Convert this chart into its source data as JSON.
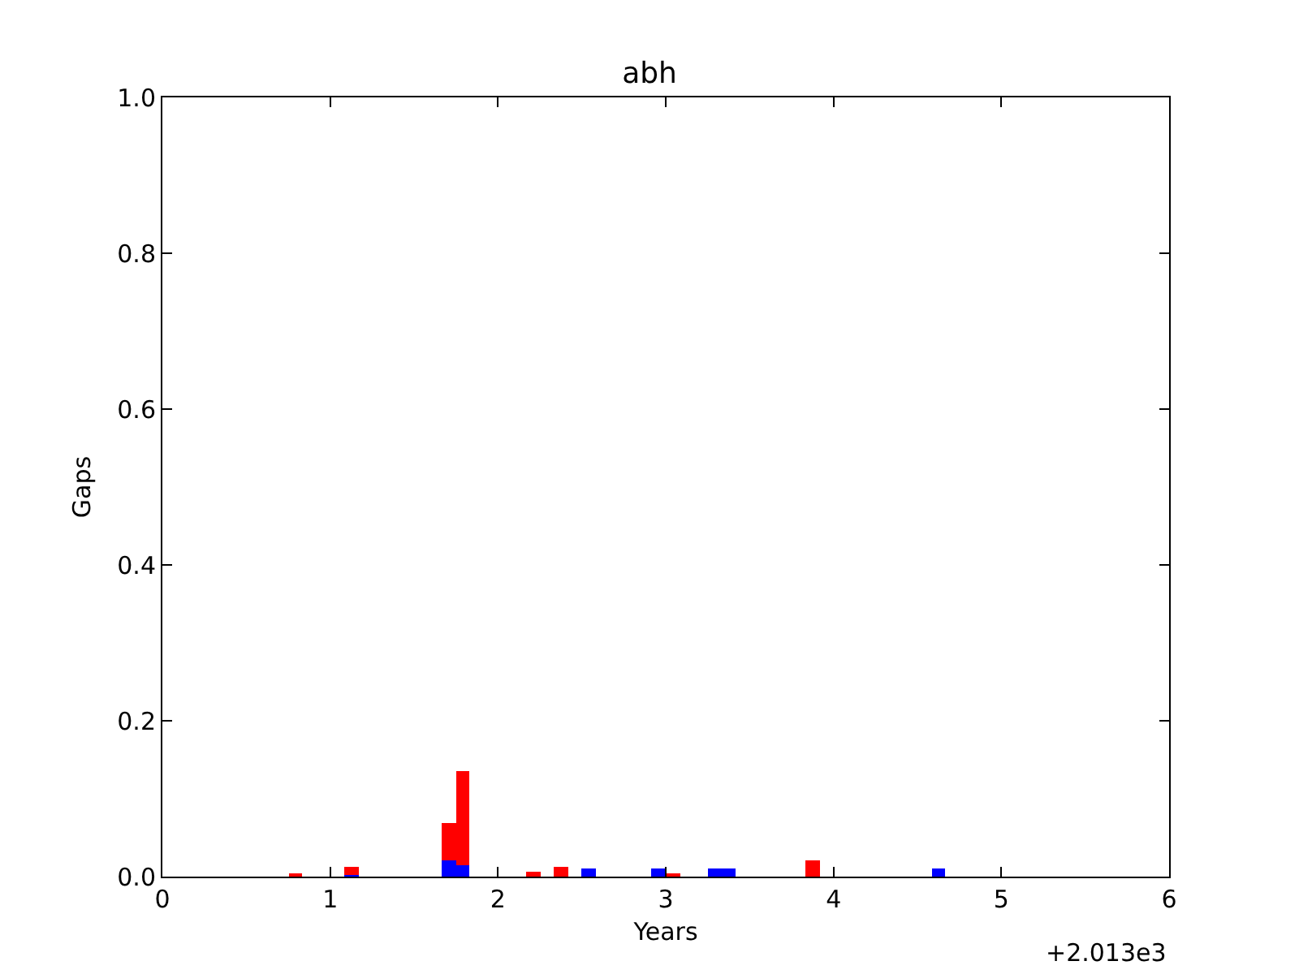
{
  "chart_data": {
    "type": "histogram",
    "title": "abh",
    "xlabel": "Years",
    "ylabel": "Gaps",
    "bins": [
      0.75,
      0.8333,
      0.9167,
      1,
      1.0833,
      1.1667,
      1.25,
      1.3333,
      1.4167,
      1.5,
      1.5833,
      1.6667,
      1.75,
      1.8333,
      1.9167,
      2,
      2.0833,
      2.1667,
      2.25,
      2.3333,
      2.4167,
      2.5,
      2.5833,
      2.6667,
      2.75,
      2.8333,
      2.9167,
      3,
      3.0833,
      3.1667,
      3.25,
      3.3333,
      3.4167,
      3.5,
      3.5833,
      3.6667,
      3.75,
      3.8333,
      3.9167,
      4,
      4.0833,
      4.1667,
      4.25,
      4.3333,
      4.4167,
      4.5,
      4.5833,
      4.6667
    ],
    "series": [
      {
        "color": "#ff0000",
        "values": [
          0.004,
          0,
          0,
          0,
          0.012,
          0,
          0,
          0,
          0,
          0,
          0,
          0.068,
          0.135,
          0,
          0,
          0,
          0,
          0.006,
          0,
          0.012,
          0,
          0,
          0,
          0,
          0,
          0,
          0,
          0.004,
          0,
          0,
          0,
          0,
          0,
          0,
          0,
          0,
          0,
          0.021,
          0,
          0,
          0,
          0,
          0,
          0,
          0,
          0,
          0
        ]
      },
      {
        "color": "#0000ff",
        "values": [
          0,
          0,
          0,
          0,
          0.002,
          0,
          0,
          0,
          0,
          0,
          0,
          0.021,
          0.015,
          0,
          0,
          0,
          0,
          0,
          0,
          0,
          0,
          0.01,
          0,
          0,
          0,
          0,
          0.01,
          0,
          0,
          0,
          0.01,
          0.01,
          0,
          0,
          0,
          0,
          0,
          0,
          0,
          0,
          0,
          0,
          0,
          0,
          0,
          0,
          0.01
        ]
      }
    ],
    "xlim": [
      0,
      6
    ],
    "xticks": [
      0,
      1,
      2,
      3,
      4,
      5,
      6
    ],
    "ylim": [
      0,
      1
    ],
    "yticks": [
      {
        "value": 0,
        "label": "0.0"
      },
      0.2,
      0.4,
      0.6,
      0.8,
      {
        "value": 1,
        "label": "1.0"
      }
    ],
    "annotations": [
      "+2.013e3"
    ],
    "grid": false
  }
}
